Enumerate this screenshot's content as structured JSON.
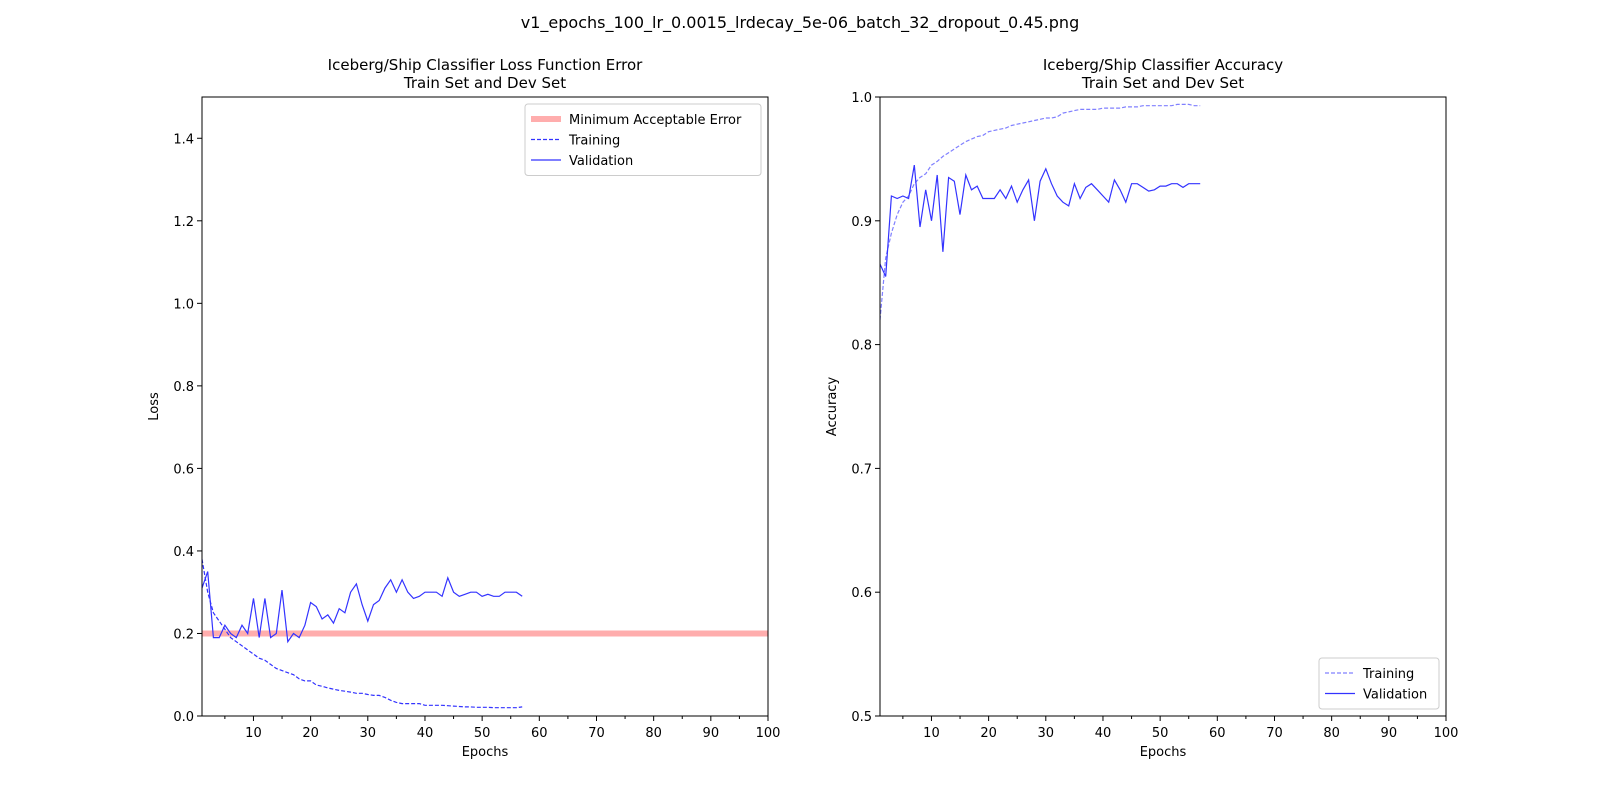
{
  "figure": {
    "suptitle": "v1_epochs_100_lr_0.0015_lrdecay_5e-06_batch_32_dropout_0.45.png"
  },
  "chart_data": [
    {
      "type": "line",
      "title": "Iceberg/Ship Classifier Loss Function Error",
      "subtitle": "Train Set and Dev Set",
      "xlabel": "Epochs",
      "ylabel": "Loss",
      "xlim": [
        1,
        100
      ],
      "ylim": [
        0,
        1.5
      ],
      "xticks": [
        10,
        20,
        30,
        40,
        50,
        60,
        70,
        80,
        90,
        100
      ],
      "yticks": [
        0.0,
        0.2,
        0.4,
        0.6,
        0.8,
        1.0,
        1.2,
        1.4
      ],
      "ytick_decimals": 1,
      "grid": false,
      "legend_position": "top-right",
      "hline": {
        "name": "Minimum Acceptable Error",
        "y": 0.2,
        "color": "#ff9999"
      },
      "series": [
        {
          "name": "Training",
          "style": "dashed",
          "color": "#3333ff",
          "x": [
            1,
            2,
            3,
            4,
            5,
            6,
            7,
            8,
            9,
            10,
            11,
            12,
            13,
            14,
            15,
            16,
            17,
            18,
            19,
            20,
            21,
            22,
            23,
            24,
            25,
            26,
            27,
            28,
            29,
            30,
            31,
            32,
            33,
            34,
            35,
            36,
            37,
            38,
            39,
            40,
            41,
            42,
            43,
            44,
            45,
            46,
            47,
            48,
            49,
            50,
            51,
            52,
            53,
            54,
            55,
            56,
            57
          ],
          "values": [
            0.38,
            0.3,
            0.25,
            0.23,
            0.21,
            0.19,
            0.18,
            0.17,
            0.16,
            0.15,
            0.14,
            0.135,
            0.125,
            0.115,
            0.11,
            0.105,
            0.1,
            0.09,
            0.085,
            0.085,
            0.075,
            0.072,
            0.068,
            0.065,
            0.062,
            0.06,
            0.058,
            0.055,
            0.055,
            0.052,
            0.05,
            0.05,
            0.045,
            0.038,
            0.033,
            0.03,
            0.03,
            0.03,
            0.03,
            0.026,
            0.026,
            0.026,
            0.026,
            0.025,
            0.024,
            0.023,
            0.022,
            0.022,
            0.021,
            0.021,
            0.021,
            0.02,
            0.02,
            0.02,
            0.02,
            0.02,
            0.022
          ]
        },
        {
          "name": "Validation",
          "style": "solid",
          "color": "#3333ff",
          "x": [
            1,
            2,
            3,
            4,
            5,
            6,
            7,
            8,
            9,
            10,
            11,
            12,
            13,
            14,
            15,
            16,
            17,
            18,
            19,
            20,
            21,
            22,
            23,
            24,
            25,
            26,
            27,
            28,
            29,
            30,
            31,
            32,
            33,
            34,
            35,
            36,
            37,
            38,
            39,
            40,
            41,
            42,
            43,
            44,
            45,
            46,
            47,
            48,
            49,
            50,
            51,
            52,
            53,
            54,
            55,
            56,
            57
          ],
          "values": [
            0.31,
            0.35,
            0.19,
            0.19,
            0.22,
            0.2,
            0.19,
            0.22,
            0.2,
            0.285,
            0.19,
            0.285,
            0.19,
            0.2,
            0.305,
            0.18,
            0.2,
            0.19,
            0.22,
            0.275,
            0.265,
            0.235,
            0.245,
            0.225,
            0.26,
            0.25,
            0.3,
            0.32,
            0.27,
            0.23,
            0.27,
            0.28,
            0.31,
            0.33,
            0.3,
            0.33,
            0.3,
            0.285,
            0.29,
            0.3,
            0.3,
            0.3,
            0.29,
            0.335,
            0.3,
            0.29,
            0.295,
            0.3,
            0.3,
            0.29,
            0.295,
            0.29,
            0.29,
            0.3,
            0.3,
            0.3,
            0.29
          ]
        }
      ]
    },
    {
      "type": "line",
      "title": "Iceberg/Ship Classifier Accuracy",
      "subtitle": "Train Set and Dev Set",
      "xlabel": "Epochs",
      "ylabel": "Accuracy",
      "xlim": [
        1,
        100
      ],
      "ylim": [
        0.5,
        1.0
      ],
      "xticks": [
        10,
        20,
        30,
        40,
        50,
        60,
        70,
        80,
        90,
        100
      ],
      "yticks": [
        0.5,
        0.6,
        0.7,
        0.8,
        0.9,
        1.0
      ],
      "ytick_decimals": 1,
      "grid": false,
      "legend_position": "bottom-right",
      "series": [
        {
          "name": "Training",
          "style": "dashed",
          "color": "#8080ff",
          "x": [
            1,
            2,
            3,
            4,
            5,
            6,
            7,
            8,
            9,
            10,
            11,
            12,
            13,
            14,
            15,
            16,
            17,
            18,
            19,
            20,
            21,
            22,
            23,
            24,
            25,
            26,
            27,
            28,
            29,
            30,
            31,
            32,
            33,
            34,
            35,
            36,
            37,
            38,
            39,
            40,
            41,
            42,
            43,
            44,
            45,
            46,
            47,
            48,
            49,
            50,
            51,
            52,
            53,
            54,
            55,
            56,
            57
          ],
          "values": [
            0.82,
            0.87,
            0.89,
            0.905,
            0.915,
            0.92,
            0.93,
            0.935,
            0.938,
            0.945,
            0.948,
            0.952,
            0.955,
            0.958,
            0.961,
            0.964,
            0.966,
            0.968,
            0.969,
            0.972,
            0.973,
            0.974,
            0.975,
            0.977,
            0.978,
            0.979,
            0.98,
            0.981,
            0.982,
            0.983,
            0.983,
            0.984,
            0.987,
            0.988,
            0.989,
            0.99,
            0.99,
            0.99,
            0.99,
            0.991,
            0.991,
            0.991,
            0.991,
            0.992,
            0.992,
            0.992,
            0.993,
            0.993,
            0.993,
            0.993,
            0.993,
            0.993,
            0.994,
            0.994,
            0.994,
            0.993,
            0.993
          ]
        },
        {
          "name": "Validation",
          "style": "solid",
          "color": "#3333ff",
          "x": [
            1,
            2,
            3,
            4,
            5,
            6,
            7,
            8,
            9,
            10,
            11,
            12,
            13,
            14,
            15,
            16,
            17,
            18,
            19,
            20,
            21,
            22,
            23,
            24,
            25,
            26,
            27,
            28,
            29,
            30,
            31,
            32,
            33,
            34,
            35,
            36,
            37,
            38,
            39,
            40,
            41,
            42,
            43,
            44,
            45,
            46,
            47,
            48,
            49,
            50,
            51,
            52,
            53,
            54,
            55,
            56,
            57
          ],
          "values": [
            0.865,
            0.855,
            0.92,
            0.918,
            0.92,
            0.918,
            0.945,
            0.895,
            0.925,
            0.9,
            0.937,
            0.875,
            0.935,
            0.932,
            0.905,
            0.937,
            0.925,
            0.928,
            0.918,
            0.918,
            0.918,
            0.925,
            0.918,
            0.928,
            0.915,
            0.925,
            0.933,
            0.9,
            0.932,
            0.942,
            0.93,
            0.92,
            0.915,
            0.912,
            0.93,
            0.918,
            0.927,
            0.93,
            0.925,
            0.92,
            0.915,
            0.933,
            0.925,
            0.915,
            0.93,
            0.93,
            0.927,
            0.924,
            0.925,
            0.928,
            0.928,
            0.93,
            0.93,
            0.927,
            0.93,
            0.93,
            0.93
          ]
        }
      ]
    }
  ]
}
